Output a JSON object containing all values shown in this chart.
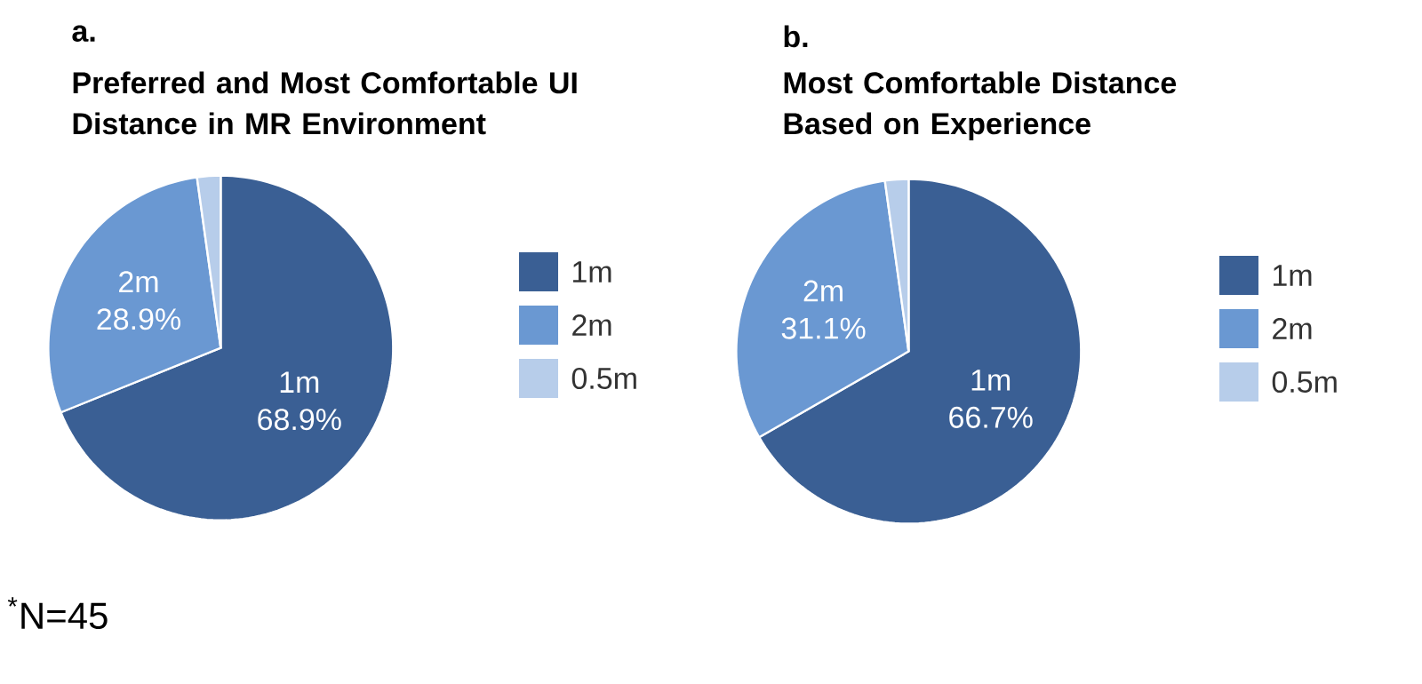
{
  "chart_data": [
    {
      "type": "pie",
      "title": "Preferred and Most Comfortable UI Distance in MR Environment",
      "annotations": [
        "a.",
        "$^{*}$N=45"
      ],
      "categories": [
        "1m",
        "2m",
        "0.5m"
      ],
      "values": [
        68.9,
        28.9,
        2.2
      ],
      "colors": [
        "#3a5f94",
        "#6a98d2",
        "#b7cdea"
      ],
      "value_labels": [
        "68.9%",
        "28.9%",
        null
      ],
      "legend": "right"
    },
    {
      "type": "pie",
      "title": "Most Comfortable Distance Based on Experience",
      "annotations": [
        "b."
      ],
      "categories": [
        "1m",
        "2m",
        "0.5m"
      ],
      "values": [
        66.7,
        31.1,
        2.2
      ],
      "colors": [
        "#3a5f94",
        "#6a98d2",
        "#b7cdea"
      ],
      "value_labels": [
        "66.7%",
        "31.1%",
        null
      ],
      "legend": "right"
    }
  ]
}
